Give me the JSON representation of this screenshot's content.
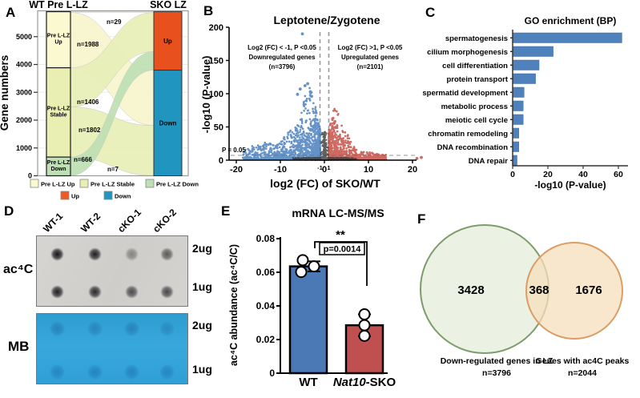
{
  "figure": {
    "bg": "#ffffff"
  },
  "panels": {
    "A": {
      "letter": "A"
    },
    "B": {
      "letter": "B"
    },
    "C": {
      "letter": "C"
    },
    "D": {
      "letter": "D",
      "row_label_top": "ac⁴C",
      "row_label_bottom": "MB",
      "columns": [
        "WT-1",
        "WT-2",
        "cKO-1",
        "cKO-2"
      ],
      "amounts": [
        "2ug",
        "1ug",
        "2ug",
        "1ug"
      ],
      "ac4c_dot_intensity": [
        [
          0.95,
          0.9,
          0.38,
          0.6
        ],
        [
          0.9,
          0.85,
          0.68,
          0.7
        ]
      ],
      "mb_dot_intensity": [
        [
          0.5,
          0.45,
          0.5,
          0.4
        ],
        [
          0.45,
          0.5,
          0.5,
          0.45
        ]
      ]
    },
    "E": {
      "letter": "E"
    },
    "F": {
      "letter": "F"
    }
  },
  "chart_data": [
    {
      "id": "sankey",
      "type": "sankey",
      "title_left": "WT Pre L-LZ",
      "title_right": "SKO LZ",
      "ylabel": "Gene numbers",
      "y_ticks": [
        0,
        1000,
        2000,
        3000,
        4000,
        5000
      ],
      "left_segments": [
        {
          "lines": [
            "Pre L-LZ",
            "Up"
          ],
          "from": 3881,
          "to": 5898,
          "color": "#fbf9cf"
        },
        {
          "lines": [
            "Pre L-LZ",
            "Stable"
          ],
          "from": 673,
          "to": 3881,
          "color": "#e9efb2"
        },
        {
          "lines": [
            "Pre L-LZ",
            "Down"
          ],
          "from": 0,
          "to": 673,
          "color": "#bfe0b4"
        }
      ],
      "right_segments": [
        {
          "label": "Up",
          "from": 3796,
          "to": 5897,
          "color": "#e8511d"
        },
        {
          "label": "Down",
          "from": 0,
          "to": 3796,
          "color": "#2095c0"
        }
      ],
      "flows": [
        {
          "label": "n=29",
          "s0": 5869,
          "s1": 5898,
          "d0": 5868,
          "d1": 5897,
          "color": "#f7f5cb",
          "lx": 133,
          "ly": 30
        },
        {
          "label": "n=1988",
          "s0": 3881,
          "s1": 5869,
          "d0": 1808,
          "d1": 3796,
          "color": "#f7f5cb",
          "lx": 96,
          "ly": 58
        },
        {
          "label": "n=1406",
          "s0": 2475,
          "s1": 3881,
          "d0": 4462,
          "d1": 5868,
          "color": "#e7eeb5",
          "lx": 96,
          "ly": 130
        },
        {
          "label": "n=1802",
          "s0": 673,
          "s1": 2475,
          "d0": 6,
          "d1": 1808,
          "color": "#e7eeb5",
          "lx": 98,
          "ly": 165
        },
        {
          "label": "n=666",
          "s0": 7,
          "s1": 673,
          "d0": 3796,
          "d1": 4462,
          "color": "#bcdfb3",
          "lx": 92,
          "ly": 202
        },
        {
          "label": "n=7",
          "s0": 0,
          "s1": 7,
          "d0": 0,
          "d1": 6,
          "color": "#bcdfb3",
          "lx": 134,
          "ly": 214
        }
      ],
      "legend": [
        {
          "label": "Pre L-LZ Up",
          "color": "#fbf9cf"
        },
        {
          "label": "Pre L-LZ Stable",
          "color": "#e9efb2"
        },
        {
          "label": "Pre L-LZ Down",
          "color": "#bfe0b4"
        },
        {
          "label": "Up",
          "color": "#ee5a26"
        },
        {
          "label": "Down",
          "color": "#2095c0"
        }
      ]
    },
    {
      "id": "volcano",
      "type": "scatter",
      "title": "Leptotene/Zygotene",
      "xlabel": "log2 (FC) of SKO/WT",
      "ylabel": "-log10 (P-value)",
      "x_ticks": [
        -20,
        -10,
        0,
        10,
        20
      ],
      "x_ticks_red": [
        -1,
        1
      ],
      "y_ticks": [
        0,
        50,
        100,
        150,
        200
      ],
      "xlim": [
        -22,
        23
      ],
      "ylim": [
        0,
        205
      ],
      "threshold_label": "P = 0.05",
      "threshold_color": "#e02020",
      "annotation_left": [
        "Log2 (FC) < -1, P <0.05",
        "Downregulated genes",
        "(n=3796)"
      ],
      "annotation_right": [
        "Log2 (FC) >1, P <0.05",
        "Upregulated genes",
        "(n=2101)"
      ],
      "colors": {
        "down": "#3c76b8",
        "up": "#bf4136",
        "ns": "#3a3a3a"
      },
      "gen": {
        "seed": 7,
        "down": {
          "n": 1500,
          "x_pow": 2.3,
          "x_scale": 17.5,
          "y_base": 4,
          "peaks": [
            [
              -3.5,
              7,
              108
            ],
            [
              -5.5,
              30,
              52
            ],
            [
              -12,
              70,
              26
            ]
          ]
        },
        "up": {
          "n": 1100,
          "x_pow": 2.6,
          "x_scale": 13,
          "y_base": 3,
          "peaks": [
            [
              2.5,
              3.5,
              80
            ],
            [
              3,
              14,
              55
            ],
            [
              8,
              60,
              12
            ]
          ]
        },
        "ns": {
          "n": 1000,
          "x_half": 7.4,
          "y_min": 0.4,
          "y_max": 3.4
        },
        "spike": {
          "n": 260,
          "x_half": 0.95,
          "y_max": 42
        }
      },
      "outliers_down": [
        [
          -5,
          190
        ],
        [
          -3.8,
          115
        ],
        [
          -4.4,
          112
        ],
        [
          -5.5,
          107
        ],
        [
          -3.2,
          103
        ],
        [
          -6.1,
          99
        ],
        [
          -2.9,
          96
        ]
      ],
      "outliers_up": [
        [
          11,
          4.5
        ],
        [
          12,
          4.5
        ],
        [
          13.2,
          4
        ],
        [
          22,
          4
        ],
        [
          21,
          2.6
        ]
      ]
    },
    {
      "id": "gobar",
      "type": "bar",
      "title": "GO enrichment (BP)",
      "xlabel": "-log10 (P-value)",
      "x_ticks": [
        0,
        20,
        40,
        60
      ],
      "categories": [
        "spermatogenesis",
        "cilium morphogenesis",
        "cell differentiation",
        "protein transport",
        "spermatid development",
        "metabolic process",
        "meiotic cell cycle",
        "chromatin remodeling",
        "DNA recombination",
        "DNA repair"
      ],
      "values": [
        62,
        23,
        15,
        13,
        6.5,
        6,
        6,
        3.5,
        3.5,
        2.5
      ],
      "bar_color": "#4f81bd"
    },
    {
      "id": "ac4cbar",
      "type": "bar",
      "title": "mRNA LC-MS/MS",
      "ylabel": "ac⁴C abundance (ac⁴C/C)",
      "y_ticks": [
        0,
        0.02,
        0.04,
        0.06,
        0.08
      ],
      "ylim": [
        0,
        0.08
      ],
      "series": [
        {
          "label_parts": [
            {
              "t": "WT",
              "i": false
            }
          ],
          "value": 0.0635,
          "color": "#4a79b5",
          "points": [
            0.0672,
            0.0602,
            0.0635
          ],
          "err": [
            0.0605,
            0.0665
          ]
        },
        {
          "label_parts": [
            {
              "t": "Nat10",
              "i": true
            },
            {
              "t": "-SKO",
              "i": false
            }
          ],
          "value": 0.0285,
          "color": "#c0504f",
          "points": [
            0.035,
            0.0285,
            0.0222
          ],
          "err": [
            0.022,
            0.035
          ]
        }
      ],
      "significance": "**",
      "p_label": "p=0.0014"
    },
    {
      "id": "venn",
      "type": "venn",
      "sets": [
        {
          "count": "3428",
          "label_lines": [
            "Down-regulated genes in LZ",
            "n=3796"
          ],
          "fill": "#e9f1e1",
          "stroke": "#7d9c6c"
        },
        {
          "count": "1676",
          "label_lines": [
            "Genes with ac4C peaks",
            "n=2044"
          ],
          "fill": "#f6dfbc",
          "stroke": "#dc9c64"
        }
      ],
      "overlap": {
        "count": "368",
        "color": "#b03a3a"
      }
    }
  ]
}
